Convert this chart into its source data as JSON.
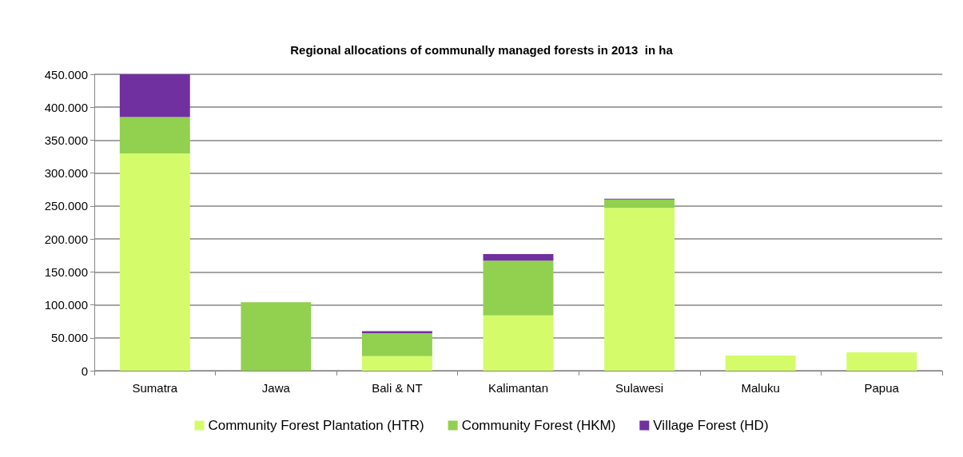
{
  "chart_data": {
    "type": "bar",
    "title": "Regional allocations of communally managed forests in 2013  in ha",
    "categories": [
      "Sumatra",
      "Jawa",
      "Bali & NT",
      "Kalimantan",
      "Sulawesi",
      "Maluku",
      "Papua"
    ],
    "stacked": true,
    "series": [
      {
        "name": "Community Forest Plantation (HTR)",
        "color": "#d4fc6a",
        "values": [
          330000,
          0,
          22000,
          84000,
          247000,
          23000,
          28000
        ]
      },
      {
        "name": "Community Forest (HKM)",
        "color": "#92d050",
        "values": [
          55000,
          104000,
          35000,
          83000,
          13000,
          0,
          0
        ]
      },
      {
        "name": "Village Forest (HD)",
        "color": "#7030a0",
        "values": [
          65000,
          0,
          3000,
          10000,
          1000,
          0,
          0
        ]
      }
    ],
    "ylim": [
      0,
      450000
    ],
    "yticks": [
      0,
      {
        "value": 50000,
        "label": "50.000"
      },
      {
        "value": 100000,
        "label": "100.000"
      },
      {
        "value": 150000,
        "label": "150.000"
      },
      {
        "value": 200000,
        "label": "200.000"
      },
      {
        "value": 250000,
        "label": "250.000"
      },
      {
        "value": 300000,
        "label": "300.000"
      },
      {
        "value": 350000,
        "label": "350.000"
      },
      {
        "value": 400000,
        "label": "400.000"
      },
      {
        "value": 450000,
        "label": "450.000"
      }
    ],
    "grid": "y",
    "legend": "bottom"
  }
}
